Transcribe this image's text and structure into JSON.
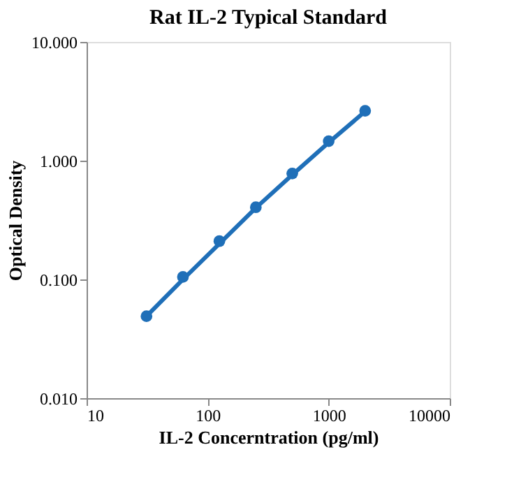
{
  "chart_data": {
    "type": "scatter",
    "title": "Rat IL-2 Typical Standard",
    "xlabel": "IL-2 Concerntration (pg/ml)",
    "ylabel": "Optical Density",
    "log": "xy",
    "grid": false,
    "marker": "circle",
    "xlim": [
      10,
      10000
    ],
    "xticks": [
      10,
      100,
      1000,
      10000
    ],
    "ylim": [
      0.01,
      10
    ],
    "yticks": [
      {
        "value": 0.01,
        "label": "0.010"
      },
      {
        "value": 0.1,
        "label": "0.100"
      },
      {
        "value": 1,
        "label": "1.000"
      },
      {
        "value": 10,
        "label": "10.000"
      }
    ],
    "series": [
      {
        "type": "line",
        "color": "#1f6fb8",
        "line_style": "solid",
        "marker": "none",
        "x": [
          31.25,
          62.5,
          125,
          250,
          500,
          1000,
          2000
        ],
        "values": [
          0.049,
          0.1,
          0.2,
          0.4,
          0.76,
          1.42,
          2.6
        ]
      },
      {
        "type": "scatter",
        "color": "#1f6fb8",
        "x": [
          31.25,
          62.5,
          125,
          250,
          500,
          1000,
          2000
        ],
        "values": [
          0.049,
          0.105,
          0.21,
          0.405,
          0.78,
          1.46,
          2.63
        ]
      }
    ]
  }
}
